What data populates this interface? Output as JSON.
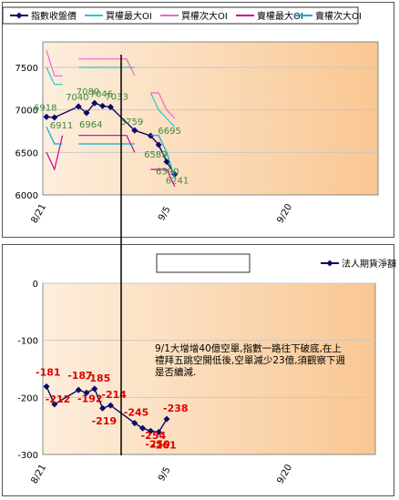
{
  "chart_data": [
    {
      "type": "line",
      "legend": {
        "placement": "top",
        "entries": [
          {
            "name": "指數收盤價",
            "color": "#0a0a6a"
          },
          {
            "name": "買權最大OI",
            "color": "#26c6da"
          },
          {
            "name": "買權次大OI",
            "color": "#ee66cc"
          },
          {
            "name": "賣權最大OI",
            "color": "#cc0099"
          },
          {
            "name": "賣權次大OI",
            "color": "#00aadd"
          }
        ]
      },
      "x_ticks": [
        "8/21",
        "9/5",
        "9/20"
      ],
      "y_ticks": [
        6000,
        6500,
        7000,
        7500
      ],
      "ylim": [
        6000,
        7800
      ],
      "grid": true,
      "series": [
        {
          "name": "指數收盤價",
          "color": "#0a0a6a",
          "values": [
            6918,
            6911,
            null,
            null,
            7040,
            6964,
            7080,
            7046,
            7033,
            null,
            null,
            6759,
            null,
            6695,
            6589,
            6390,
            6241
          ]
        },
        {
          "name": "買權最大OI",
          "color": "#26c6da",
          "values": [
            7500,
            7300,
            7300,
            null,
            7500,
            7500,
            7500,
            7500,
            7500,
            7500,
            7500,
            7500,
            null,
            7200,
            7000,
            6900,
            6800
          ]
        },
        {
          "name": "買權次大OI",
          "color": "#ee66cc",
          "values": [
            7700,
            7400,
            7400,
            null,
            7600,
            7600,
            7600,
            7600,
            7600,
            7600,
            7600,
            7400,
            null,
            7200,
            7200,
            7000,
            6900
          ]
        },
        {
          "name": "賣權最大OI",
          "color": "#cc0099",
          "values": [
            6500,
            6300,
            6700,
            null,
            6700,
            6700,
            6700,
            6700,
            6700,
            6700,
            6700,
            6500,
            null,
            6300,
            6300,
            6300,
            6100
          ]
        },
        {
          "name": "賣權次大OI",
          "color": "#00aadd",
          "values": [
            6800,
            6600,
            6600,
            null,
            6600,
            6600,
            6600,
            6600,
            6600,
            6600,
            6600,
            6600,
            null,
            6700,
            6700,
            6500,
            6200
          ]
        }
      ],
      "data_labels": [
        "6918",
        "6911",
        "7040",
        "6964",
        "7080",
        "7046",
        "7033",
        "6759",
        "6695",
        "6589",
        "6390",
        "6241"
      ],
      "label_color": "#3a8a3a"
    },
    {
      "type": "line",
      "legend": {
        "placement": "top",
        "entries": [
          {
            "name": "法人期貨淨額",
            "color": "#0a0a6a"
          }
        ]
      },
      "x_ticks": [
        "8/21",
        "9/5",
        "9/20"
      ],
      "y_ticks": [
        0,
        -100,
        -200,
        -300
      ],
      "ylim": [
        -300,
        0
      ],
      "grid": true,
      "series": [
        {
          "name": "法人期貨淨額",
          "color": "#0a0a6a",
          "values": [
            -181,
            -212,
            null,
            null,
            -187,
            -192,
            -185,
            -219,
            -214,
            null,
            null,
            -245,
            -254,
            -259,
            -261,
            -238
          ]
        }
      ],
      "data_labels": [
        "-181",
        "-212",
        "-187",
        "-192",
        "-185",
        "-219",
        "-214",
        "-245",
        "-254",
        "-259",
        "-261",
        "-238"
      ],
      "label_color": "#dd0000",
      "annotation": "9/1大增增40億空單,指數一路往下破底,在上禮拜五跳空開低後,空單減少23億,須觀察下週是否續減."
    }
  ]
}
